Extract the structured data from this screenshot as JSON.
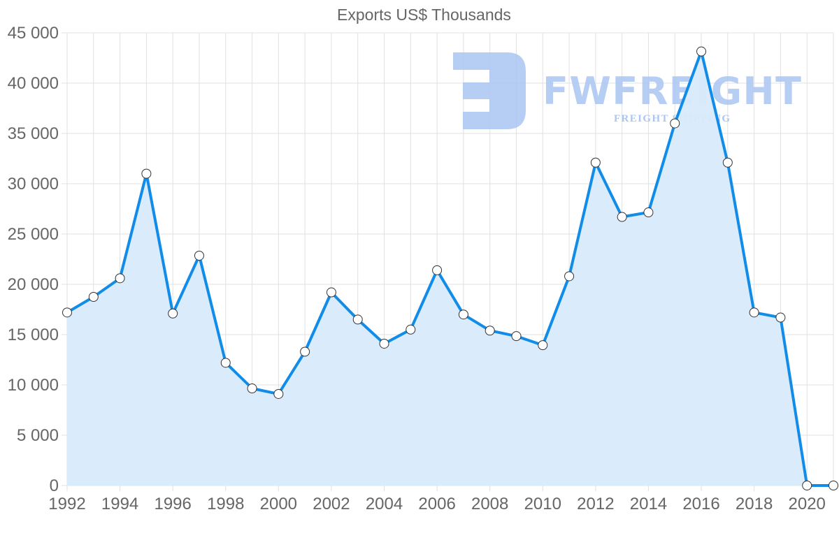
{
  "chart_data": {
    "type": "line",
    "title": "Exports US$ Thousands",
    "xlabel": "",
    "ylabel": "",
    "ylim": [
      0,
      45000
    ],
    "grid": true,
    "legend": null,
    "fill": true,
    "x": [
      1992,
      1993,
      1994,
      1995,
      1996,
      1997,
      1998,
      1999,
      2000,
      2001,
      2002,
      2003,
      2004,
      2005,
      2006,
      2007,
      2008,
      2009,
      2010,
      2011,
      2012,
      2013,
      2014,
      2015,
      2016,
      2017,
      2018,
      2019,
      2020,
      2021
    ],
    "series": [
      {
        "name": "Exports US$ Thousands",
        "values": [
          17200,
          18750,
          20600,
          31000,
          17100,
          22850,
          12200,
          9650,
          9100,
          13300,
          19200,
          16500,
          14100,
          15500,
          21400,
          17000,
          15400,
          14850,
          13950,
          20800,
          32100,
          26700,
          27150,
          36000,
          43150,
          32100,
          17200,
          16700,
          0,
          0
        ]
      }
    ],
    "y_ticks": [
      "0",
      "5 000",
      "10 000",
      "15 000",
      "20 000",
      "25 000",
      "30 000",
      "35 000",
      "40 000",
      "45 000"
    ],
    "y_tick_values": [
      0,
      5000,
      10000,
      15000,
      20000,
      25000,
      30000,
      35000,
      40000,
      45000
    ],
    "x_ticks": [
      "1992",
      "1994",
      "1996",
      "1998",
      "2000",
      "2002",
      "2004",
      "2006",
      "2008",
      "2010",
      "2012",
      "2014",
      "2016",
      "2018",
      "2020"
    ]
  },
  "colors": {
    "line": "#118ce9",
    "fill": "#d8ebfb",
    "grid": "#e0e0e0",
    "text": "#666666",
    "point_fill": "#ffffff",
    "point_stroke": "#333333",
    "watermark": "#aac6f2"
  },
  "watermark": {
    "brand": "FWFREIGHT",
    "tagline": "FREIGHT SHIPPING"
  }
}
